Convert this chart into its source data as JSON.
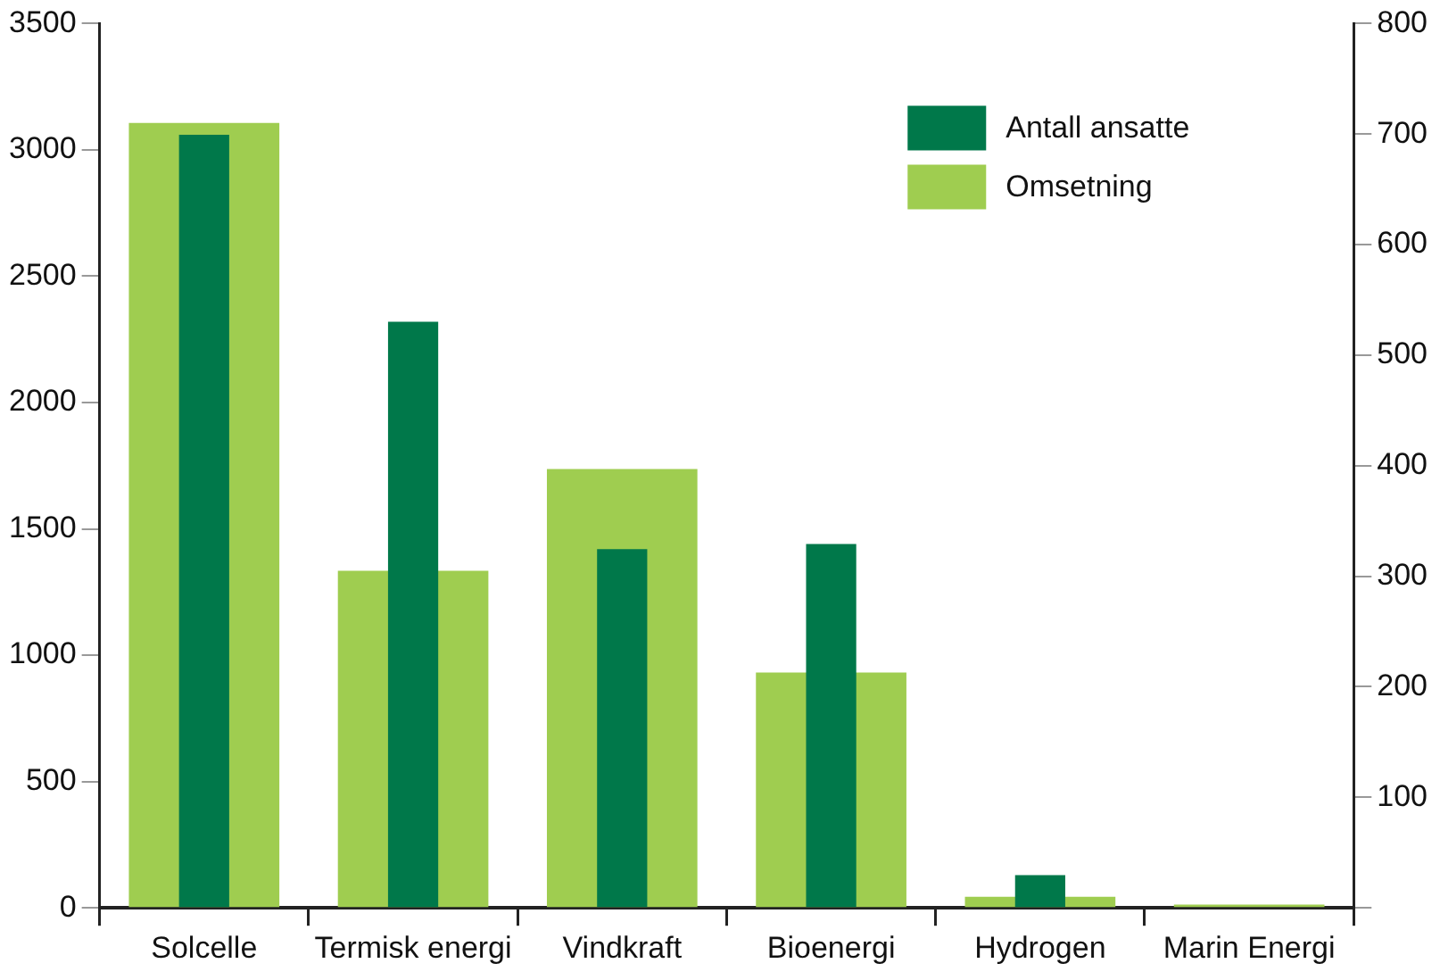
{
  "chart_data": {
    "type": "bar",
    "categories": [
      "Solcelle",
      "Termisk energi",
      "Vindkraft",
      "Bioenergi",
      "Hydrogen",
      "Marin Energi"
    ],
    "series": [
      {
        "name": "Antall ansatte",
        "color": "#00784a",
        "values": [
          3060,
          2320,
          1420,
          1440,
          130,
          0
        ]
      },
      {
        "name": "Omsetning",
        "color": "#9fcd50",
        "values": [
          710,
          305,
          397,
          213,
          10,
          3
        ],
        "axis": "y2"
      }
    ],
    "ylim": [
      0,
      3500
    ],
    "yticks": [
      0,
      500,
      1000,
      1500,
      2000,
      2500,
      3000,
      3500
    ],
    "y2lim": [
      0,
      800
    ],
    "y2ticks": [
      {
        "value": 0,
        "label": null
      },
      100,
      200,
      300,
      400,
      500,
      600,
      700,
      800
    ],
    "grid": false,
    "legend": "top right"
  }
}
